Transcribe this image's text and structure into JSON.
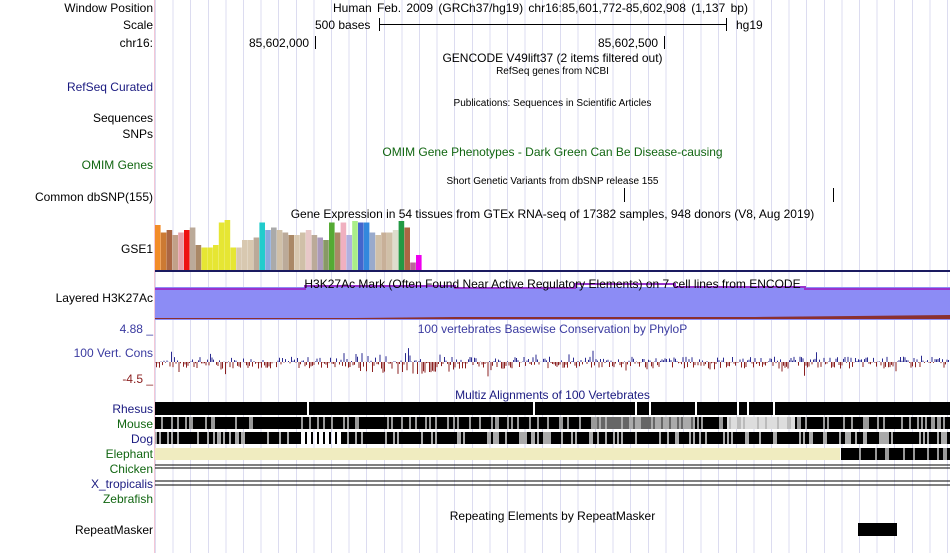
{
  "header": {
    "window_position_label": "Window Position",
    "window_position_value": "Human Feb. 2009 (GRCh37/hg19)   chr16:85,601,772-85,602,908 (1,137 bp)",
    "scale_label": "Scale",
    "scale_value": "500 bases",
    "scale_assembly": "hg19",
    "chrom_label": "chr16:",
    "pos_left": "85,602,000",
    "pos_right": "85,602,500"
  },
  "tracks": {
    "gencode": {
      "title": "GENCODE V49lift37 (2 items filtered out)"
    },
    "refseq": {
      "label": "RefSeq Curated",
      "title": "RefSeq genes from NCBI"
    },
    "publications": {
      "title": "Publications: Sequences in Scientific Articles"
    },
    "sequences": {
      "label": "Sequences"
    },
    "snps": {
      "label": "SNPs"
    },
    "omim": {
      "label": "OMIM Genes",
      "title": "OMIM Gene Phenotypes - Dark Green Can Be Disease-causing"
    },
    "dbsnp": {
      "label": "Common dbSNP(155)",
      "title": "Short Genetic Variants from dbSNP release 155"
    },
    "gtex": {
      "label": "GSE1",
      "title": "Gene Expression in 54 tissues from GTEx RNA-seq of 17382 samples, 948 donors (V8, Aug 2019)"
    },
    "h3k27ac": {
      "label": "Layered H3K27Ac",
      "title": "H3K27Ac Mark (Often Found Near Active Regulatory Elements) on 7 cell lines from ENCODE"
    },
    "conservation": {
      "label": "100 Vert. Cons",
      "title": "100 vertebrates Basewise Conservation by PhyloP",
      "max": "4.88 _",
      "min": "-4.5 _"
    },
    "multiz": {
      "title": "Multiz Alignments of 100 Vertebrates",
      "species": [
        "Rhesus",
        "Mouse",
        "Dog",
        "Elephant",
        "Chicken",
        "X_tropicalis",
        "Zebrafish"
      ]
    },
    "repeatmasker": {
      "label": "RepeatMasker",
      "title": "Repeating Elements by RepeatMasker"
    }
  },
  "colors": {
    "label_blue": "#1a1a80",
    "omim_green": "#116611",
    "h3k27ac_fill": "#8c8cf5",
    "cons_pos": "#2a2a90",
    "cons_neg": "#8b2020",
    "elephant_fill": "#f0ecc0"
  },
  "gtex_bars": {
    "colors": [
      "#f28c28",
      "#cc7a33",
      "#aa6644",
      "#c2a088",
      "#e6a0a8",
      "#ee1111",
      "#bbaa99",
      "#aa8866",
      "#e6e633",
      "#e6e633",
      "#e6e633",
      "#e6e633",
      "#e6e633",
      "#e6e633",
      "#d8c8b0",
      "#d8c8b0",
      "#d8c8b0",
      "#bbaa99",
      "#22cccc",
      "#88aadd",
      "#aaaaaa",
      "#d0c0a8",
      "#bbaa99",
      "#aa8866",
      "#d8c8b0",
      "#d0c0a8",
      "#e8c8c8",
      "#bbaa99",
      "#aa99bb",
      "#889966",
      "#55aa33",
      "#aa8866",
      "#f0b0c0",
      "#b0b0e0",
      "#aaee88",
      "#4466cc",
      "#3388dd",
      "#99aacc",
      "#d0c0a8",
      "#c8b098",
      "#d0c0a8",
      "#ddddcc",
      "#229944",
      "#aa6644",
      "#bb6699",
      "#ee00ee"
    ],
    "values": [
      0.9,
      0.75,
      0.8,
      0.7,
      0.75,
      0.8,
      0.85,
      0.5,
      0.45,
      0.45,
      0.5,
      0.95,
      1.0,
      0.45,
      0.45,
      0.6,
      0.6,
      0.65,
      0.95,
      0.8,
      0.85,
      0.8,
      0.75,
      0.7,
      0.7,
      0.75,
      0.8,
      0.7,
      0.65,
      0.6,
      0.95,
      0.75,
      0.95,
      0.7,
      0.98,
      0.95,
      0.95,
      0.75,
      0.7,
      0.75,
      0.75,
      0.8,
      0.98,
      0.85,
      0.15,
      0.3
    ]
  }
}
